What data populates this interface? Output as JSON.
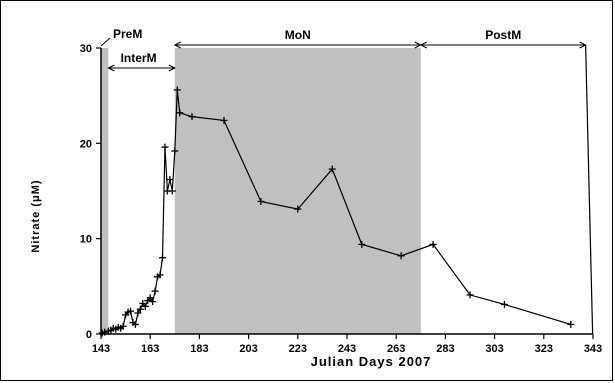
{
  "chart_data": {
    "type": "line",
    "xlabel": "Julian  Days 2007",
    "ylabel": "Nitrate (μM)",
    "xlim": [
      143,
      343
    ],
    "ylim": [
      0,
      30
    ],
    "xticks": [
      143,
      163,
      183,
      203,
      223,
      243,
      263,
      283,
      303,
      323,
      343
    ],
    "yticks": [
      0,
      10,
      20,
      30
    ],
    "grid": false,
    "shaded_regions": [
      {
        "x": [
          143,
          146
        ],
        "color": "#c0c0c0"
      },
      {
        "x": [
          173,
          273
        ],
        "color": "#c0c0c0"
      }
    ],
    "periods": [
      {
        "label": "PreM",
        "x": [
          143,
          146
        ]
      },
      {
        "label": "InterM",
        "x": [
          146,
          173
        ]
      },
      {
        "label": "MoN",
        "x": [
          173,
          273
        ]
      },
      {
        "label": "PostM",
        "x": [
          273,
          340
        ]
      }
    ],
    "series": [
      {
        "x": [
          143.5,
          144.5,
          146,
          147,
          148,
          149,
          150,
          151,
          152,
          153,
          154,
          155,
          156,
          157,
          158,
          159,
          160,
          161,
          162,
          163,
          164,
          165,
          166,
          167,
          168,
          169,
          170,
          171,
          172,
          173,
          174,
          175,
          180,
          193,
          208,
          223,
          237,
          249,
          265,
          278,
          293,
          307,
          334
        ],
        "y": [
          0.1,
          0.2,
          0.3,
          0.4,
          0.6,
          0.5,
          0.7,
          0.6,
          0.8,
          2.0,
          2.3,
          2.4,
          1.2,
          1.0,
          2.2,
          2.6,
          3.2,
          2.9,
          3.5,
          3.8,
          3.4,
          4.5,
          6.0,
          6.2,
          8.0,
          19.6,
          15.0,
          16.2,
          15.0,
          19.2,
          25.6,
          23.2,
          22.8,
          22.4,
          13.9,
          13.1,
          17.3,
          9.4,
          8.2,
          9.4,
          4.1,
          3.1,
          1.0
        ]
      }
    ]
  }
}
